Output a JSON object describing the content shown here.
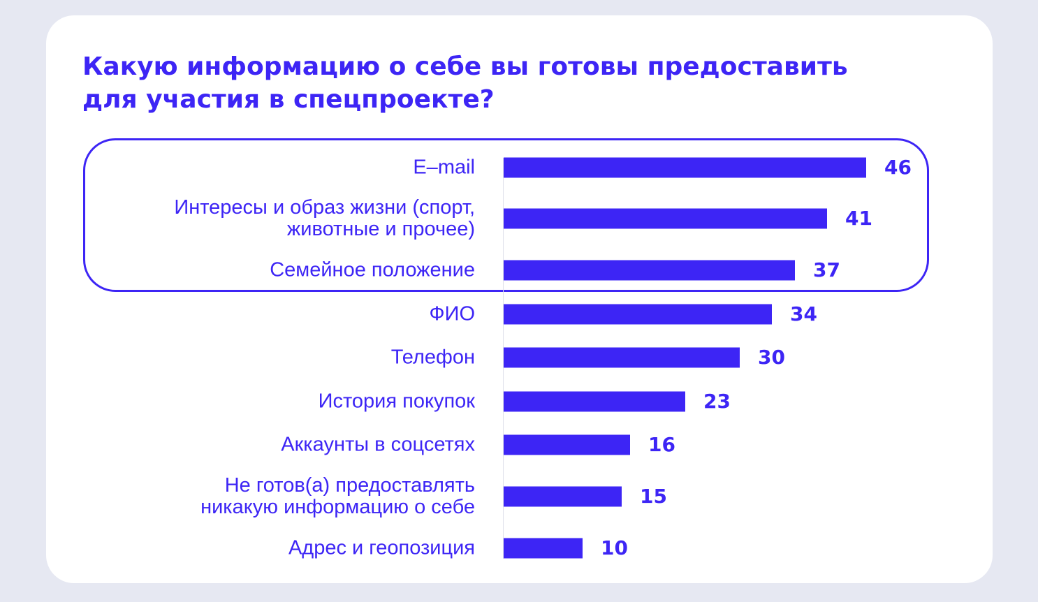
{
  "chart_data": {
    "type": "bar",
    "orientation": "horizontal",
    "title_lines": [
      "Какую информацию о себе вы готовы предоставить",
      "для участия в спецпроекте?"
    ],
    "categories": [
      "E–mail",
      "Интересы и образ жизни (спорт,\nживотные и прочее)",
      "Семейное положение",
      "ФИО",
      "Телефон",
      "История покупок",
      "Аккаунты в соцсетях",
      "Не готов(а) предоставлять\nникакую информацию о себе",
      "Адрес и геопозиция"
    ],
    "values": [
      46,
      41,
      37,
      34,
      30,
      23,
      16,
      15,
      10
    ],
    "value_labels": [
      "46",
      "41",
      "37",
      "34",
      "30",
      "23",
      "16",
      "15",
      "10"
    ],
    "highlighted_categories": [
      "E–mail",
      "Интересы и образ жизни (спорт,\nживотные и прочее)",
      "Семейное положение"
    ],
    "xlim": [
      0,
      46
    ],
    "grid": false,
    "bar_color": "#3d25f5",
    "card_background": "#ffffff",
    "page_background": "#e6e8f2"
  }
}
